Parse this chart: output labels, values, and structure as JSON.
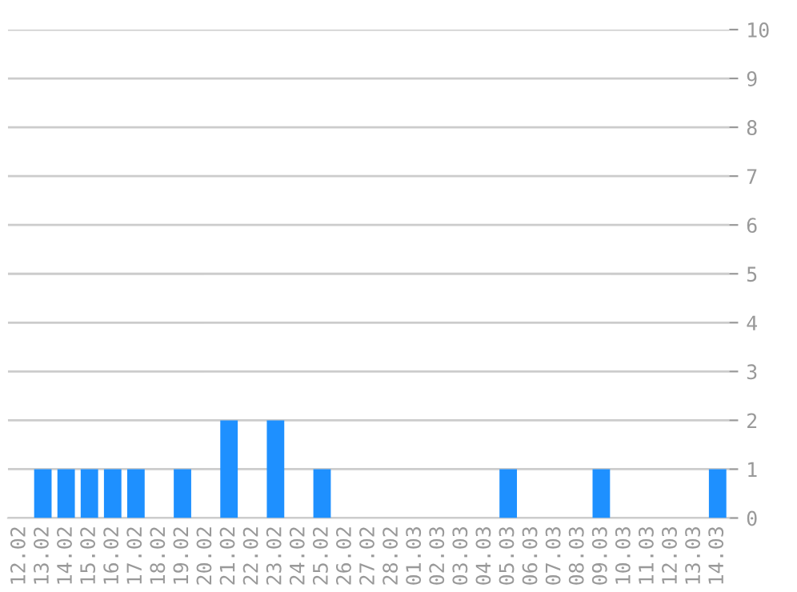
{
  "chart_data": {
    "type": "bar",
    "categories": [
      "12.02",
      "13.02",
      "14.02",
      "15.02",
      "16.02",
      "17.02",
      "18.02",
      "19.02",
      "20.02",
      "21.02",
      "22.02",
      "23.02",
      "24.02",
      "25.02",
      "26.02",
      "27.02",
      "28.02",
      "01.03",
      "02.03",
      "03.03",
      "04.03",
      "05.03",
      "06.03",
      "07.03",
      "08.03",
      "09.03",
      "10.03",
      "11.03",
      "12.03",
      "13.03",
      "14.03"
    ],
    "values": [
      0,
      1,
      1,
      1,
      1,
      1,
      0,
      1,
      0,
      2,
      0,
      2,
      0,
      1,
      0,
      0,
      0,
      0,
      0,
      0,
      0,
      1,
      0,
      0,
      0,
      1,
      0,
      0,
      0,
      0,
      1
    ],
    "color": "#1e90ff",
    "ylim": [
      0,
      10
    ],
    "yticks": [
      0,
      1,
      2,
      3,
      4,
      5,
      6,
      7,
      8,
      9,
      10
    ],
    "grid": "y",
    "legend": false
  }
}
